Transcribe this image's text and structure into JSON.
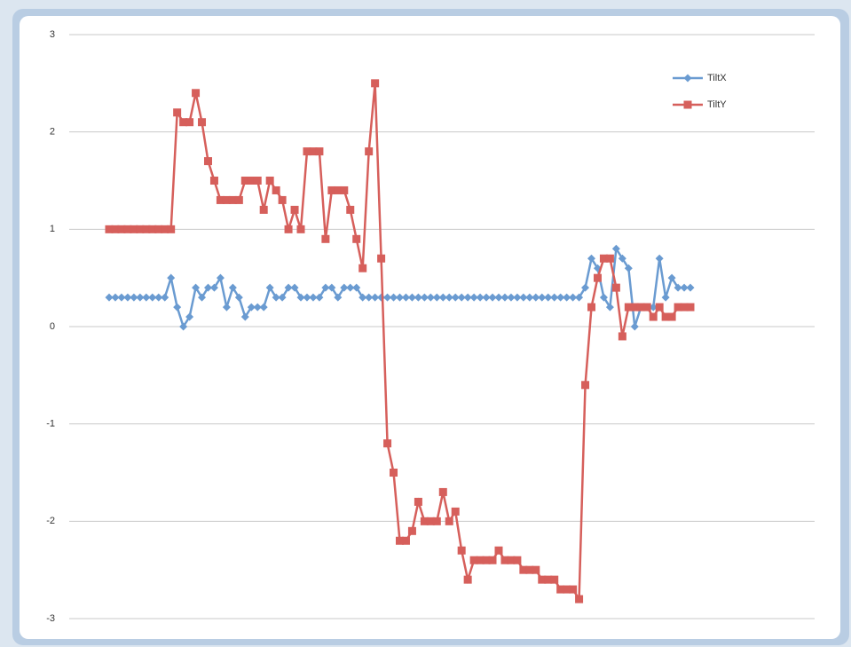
{
  "chart_data": {
    "type": "line",
    "series": [
      {
        "name": "TiltX",
        "color": "#6a9bd1",
        "marker": "diamond",
        "values": [
          0.3,
          0.3,
          0.3,
          0.3,
          0.3,
          0.3,
          0.3,
          0.3,
          0.3,
          0.3,
          0.5,
          0.2,
          0.0,
          0.1,
          0.4,
          0.3,
          0.4,
          0.4,
          0.5,
          0.2,
          0.4,
          0.3,
          0.1,
          0.2,
          0.2,
          0.2,
          0.4,
          0.3,
          0.3,
          0.4,
          0.4,
          0.3,
          0.3,
          0.3,
          0.3,
          0.4,
          0.4,
          0.3,
          0.4,
          0.4,
          0.4,
          0.3,
          0.3,
          0.3,
          0.3,
          0.3,
          0.3,
          0.3,
          0.3,
          0.3,
          0.3,
          0.3,
          0.3,
          0.3,
          0.3,
          0.3,
          0.3,
          0.3,
          0.3,
          0.3,
          0.3,
          0.3,
          0.3,
          0.3,
          0.3,
          0.3,
          0.3,
          0.3,
          0.3,
          0.3,
          0.3,
          0.3,
          0.3,
          0.3,
          0.3,
          0.3,
          0.3,
          0.4,
          0.7,
          0.6,
          0.3,
          0.2,
          0.8,
          0.7,
          0.6,
          0.0,
          0.2,
          0.2,
          0.2,
          0.7,
          0.3,
          0.5,
          0.4,
          0.4,
          0.4
        ]
      },
      {
        "name": "TiltY",
        "color": "#d65f5b",
        "marker": "square",
        "values": [
          1.0,
          1.0,
          1.0,
          1.0,
          1.0,
          1.0,
          1.0,
          1.0,
          1.0,
          1.0,
          1.0,
          2.2,
          2.1,
          2.1,
          2.4,
          2.1,
          1.7,
          1.5,
          1.3,
          1.3,
          1.3,
          1.3,
          1.5,
          1.5,
          1.5,
          1.2,
          1.5,
          1.4,
          1.3,
          1.0,
          1.2,
          1.0,
          1.8,
          1.8,
          1.8,
          0.9,
          1.4,
          1.4,
          1.4,
          1.2,
          0.9,
          0.6,
          1.8,
          2.5,
          0.7,
          -1.2,
          -1.5,
          -2.2,
          -2.2,
          -2.1,
          -1.8,
          -2.0,
          -2.0,
          -2.0,
          -1.7,
          -2.0,
          -1.9,
          -2.3,
          -2.6,
          -2.4,
          -2.4,
          -2.4,
          -2.4,
          -2.3,
          -2.4,
          -2.4,
          -2.4,
          -2.5,
          -2.5,
          -2.5,
          -2.6,
          -2.6,
          -2.6,
          -2.7,
          -2.7,
          -2.7,
          -2.8,
          -0.6,
          0.2,
          0.5,
          0.7,
          0.7,
          0.4,
          -0.1,
          0.2,
          0.2,
          0.2,
          0.2,
          0.1,
          0.2,
          0.1,
          0.1,
          0.2,
          0.2,
          0.2
        ]
      }
    ],
    "ylim": [
      -3,
      3
    ],
    "yticks": [
      -3,
      -2,
      -1,
      0,
      1,
      2,
      3
    ],
    "grid": true
  }
}
